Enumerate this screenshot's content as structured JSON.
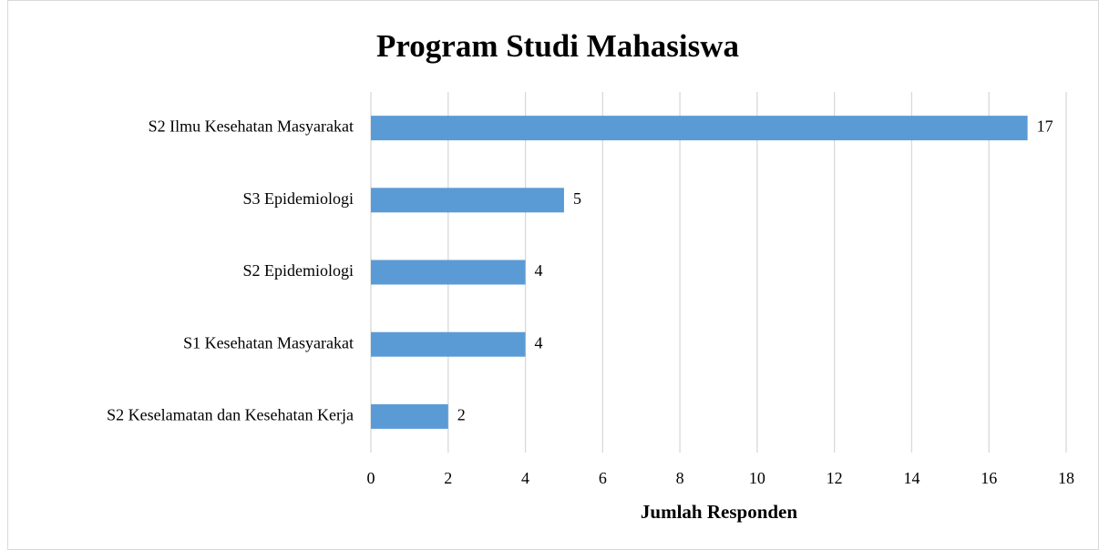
{
  "chart_data": {
    "type": "bar",
    "orientation": "horizontal",
    "title": "Program Studi Mahasiswa",
    "x_label": "Jumlah Responden",
    "categories": [
      "S2 Ilmu Kesehatan Masyarakat",
      "S3 Epidemiologi",
      "S2 Epidemiologi",
      "S1 Kesehatan Masyarakat",
      "S2 Keselamatan dan Kesehatan Kerja"
    ],
    "values": [
      17,
      5,
      4,
      4,
      2
    ],
    "color": "#5b9bd5",
    "xlim": [
      0,
      18
    ],
    "xticks": [
      0,
      2,
      4,
      6,
      8,
      10,
      12,
      14,
      16,
      18
    ],
    "grid": true
  }
}
